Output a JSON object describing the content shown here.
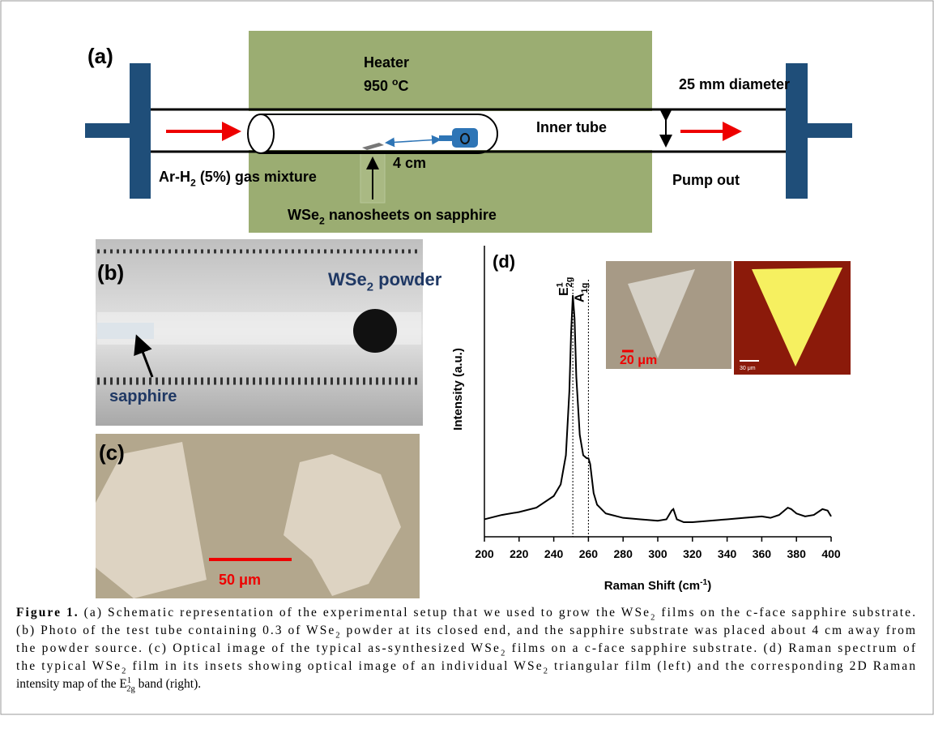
{
  "panel_a": {
    "label": "(a)",
    "heater": "Heater",
    "temperature": [
      "950 ",
      {
        "text": "o",
        "style": "sup"
      },
      "C"
    ],
    "diameter": "25 mm diameter",
    "inner_tube": "Inner tube",
    "gas": [
      "Ar-H",
      {
        "text": "2",
        "style": "sub"
      },
      " (5%) gas mixture"
    ],
    "distance": "4 cm",
    "pump": "Pump out",
    "sample": [
      "WSe",
      {
        "text": "2",
        "style": "sub"
      },
      " nanosheets on sapphire"
    ]
  },
  "panel_b": {
    "label": "(b)",
    "powder": [
      "WSe",
      {
        "text": "2",
        "style": "sub"
      },
      " powder"
    ],
    "substrate": "sapphire"
  },
  "panel_c": {
    "label": "(c)",
    "scale_bar": "50 μm"
  },
  "panel_d": {
    "label": "(d)",
    "inset_scale_bar": "20 μm",
    "map_scale_bar": "30 μm"
  },
  "chart_data": {
    "type": "line",
    "xlabel": [
      "Raman Shift (cm",
      {
        "text": "-1",
        "style": "sup"
      },
      ")"
    ],
    "ylabel": "Intensity (a.u.)",
    "x": [
      200,
      210,
      220,
      230,
      240,
      244,
      247,
      249,
      250,
      251,
      252,
      253,
      255,
      257,
      259,
      260,
      261,
      263,
      265,
      270,
      280,
      290,
      300,
      305,
      308,
      309,
      311,
      315,
      320,
      330,
      340,
      350,
      360,
      365,
      370,
      375,
      377,
      380,
      385,
      390,
      395,
      398,
      400
    ],
    "values": [
      6,
      7.5,
      8.5,
      10,
      14,
      18,
      28,
      50,
      70,
      83,
      75,
      55,
      35,
      28,
      27,
      27,
      25,
      15,
      11,
      8,
      6.5,
      6,
      5.5,
      6,
      9,
      9.5,
      6,
      5,
      5,
      5.5,
      6,
      6.5,
      7,
      6.5,
      7.5,
      10,
      9.5,
      8,
      7,
      7.5,
      9.5,
      9,
      7
    ],
    "color": "#000000",
    "xlim": [
      200,
      400
    ],
    "ylim": [
      0,
      100
    ],
    "xticks": [
      200,
      220,
      240,
      260,
      280,
      300,
      320,
      340,
      360,
      380,
      400
    ],
    "annotations": [
      {
        "text": [
          "E",
          {
            "text": "1",
            "style": "sup"
          },
          {
            "text": "2g",
            "style": "stack"
          }
        ],
        "x": 251
      },
      {
        "text": [
          "A",
          {
            "text": "1g",
            "style": "sub"
          }
        ],
        "x": 260
      }
    ]
  },
  "caption": {
    "lines": [
      [
        {
          "text": "Figure 1.",
          "style": "bold"
        },
        " (a) Schematic representation of the experimental setup that we used to grow the WSe",
        {
          "text": "2",
          "style": "sub"
        },
        " films on the c-face sapphire substrate."
      ],
      [
        "(b) Photo of the test tube containing 0.3 of WSe",
        {
          "text": "2",
          "style": "sub"
        },
        " powder at its closed end, and the sapphire substrate was placed about 4  cm away from"
      ],
      [
        "the powder source. (c) Optical image of the typical as-synthesized WSe",
        {
          "text": "2",
          "style": "sub"
        },
        " films on a c-face sapphire substrate. (d) Raman spectrum of"
      ],
      [
        "the typical WSe",
        {
          "text": "2",
          "style": "sub"
        },
        " film in its insets showing optical image of an individual WSe",
        {
          "text": "2",
          "style": "sub"
        },
        " triangular film (left) and the corresponding 2D Raman"
      ],
      [
        "intensity map of the E",
        {
          "text": "1",
          "style": "sup"
        },
        {
          "text": "2g",
          "style": "stack"
        },
        " band (right)."
      ]
    ]
  }
}
